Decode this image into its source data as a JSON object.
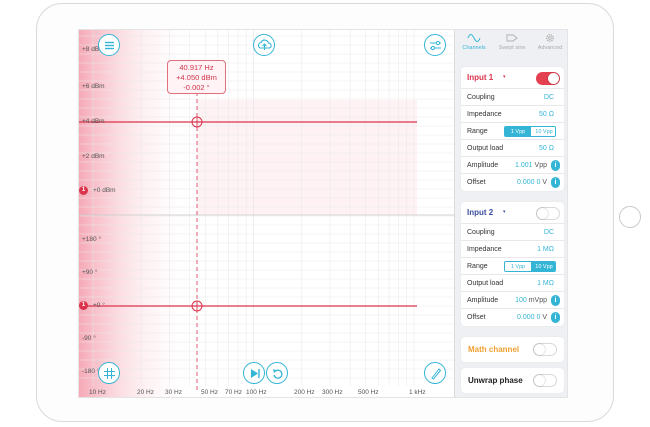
{
  "colors": {
    "accent": "#34b5d6",
    "trace": "#d9344c",
    "math": "#f0a030",
    "input2": "#3a4fa0"
  },
  "plot": {
    "y_ticks_mag": [
      "+8 dBm",
      "+6 dBm",
      "+4 dBm",
      "+2 dBm",
      "+0 dBm"
    ],
    "y_ticks_phase": [
      "+180 °",
      "+90 °",
      "+0 °",
      "-90 °",
      "-180 °"
    ],
    "x_ticks": [
      "10 Hz",
      "20 Hz",
      "30 Hz",
      "50 Hz",
      "70 Hz",
      "100 Hz",
      "200 Hz",
      "300 Hz",
      "500 Hz",
      "1 kHz"
    ],
    "readout": {
      "freq": "40.917 Hz",
      "mag": "+4.050 dBm",
      "phase": "-0.002 °"
    },
    "marker_label": "1"
  },
  "tabs": [
    {
      "label": "Channels",
      "icon": "wave-icon"
    },
    {
      "label": "Swept sine",
      "icon": "sweep-icon"
    },
    {
      "label": "Advanced",
      "icon": "gear-icon"
    }
  ],
  "input1": {
    "title": "Input 1",
    "caret": "▾",
    "coupling": {
      "label": "Coupling",
      "value": "DC"
    },
    "impedance": {
      "label": "Impedance",
      "value": "50 Ω"
    },
    "range": {
      "label": "Range",
      "opt1": "1 Vpp",
      "opt2": "10 Vpp"
    },
    "output_load": {
      "label": "Output load",
      "value": "50 Ω"
    },
    "amplitude": {
      "label": "Amplitude",
      "value": "1.001",
      "unit": "Vpp"
    },
    "offset": {
      "label": "Offset",
      "value": "0.000 0",
      "unit": "V"
    },
    "enabled": true
  },
  "input2": {
    "title": "Input 2",
    "caret": "▾",
    "coupling": {
      "label": "Coupling",
      "value": "DC"
    },
    "impedance": {
      "label": "Impedance",
      "value": "1 MΩ"
    },
    "range": {
      "label": "Range",
      "opt1": "1 Vpp",
      "opt2": "10 Vpp"
    },
    "output_load": {
      "label": "Output load",
      "value": "1 MΩ"
    },
    "amplitude": {
      "label": "Amplitude",
      "value": "100",
      "unit": "mVpp"
    },
    "offset": {
      "label": "Offset",
      "value": "0.000 0",
      "unit": "V"
    },
    "enabled": false
  },
  "math_channel": {
    "label": "Math channel",
    "enabled": false
  },
  "unwrap_phase": {
    "label": "Unwrap phase",
    "enabled": false
  },
  "icons": {
    "menu": "menu-icon",
    "cloud": "cloud-upload-icon",
    "settings": "sliders-icon",
    "grid": "grid-icon",
    "play": "play-step-icon",
    "loop": "loop-icon",
    "pen": "pen-icon"
  }
}
